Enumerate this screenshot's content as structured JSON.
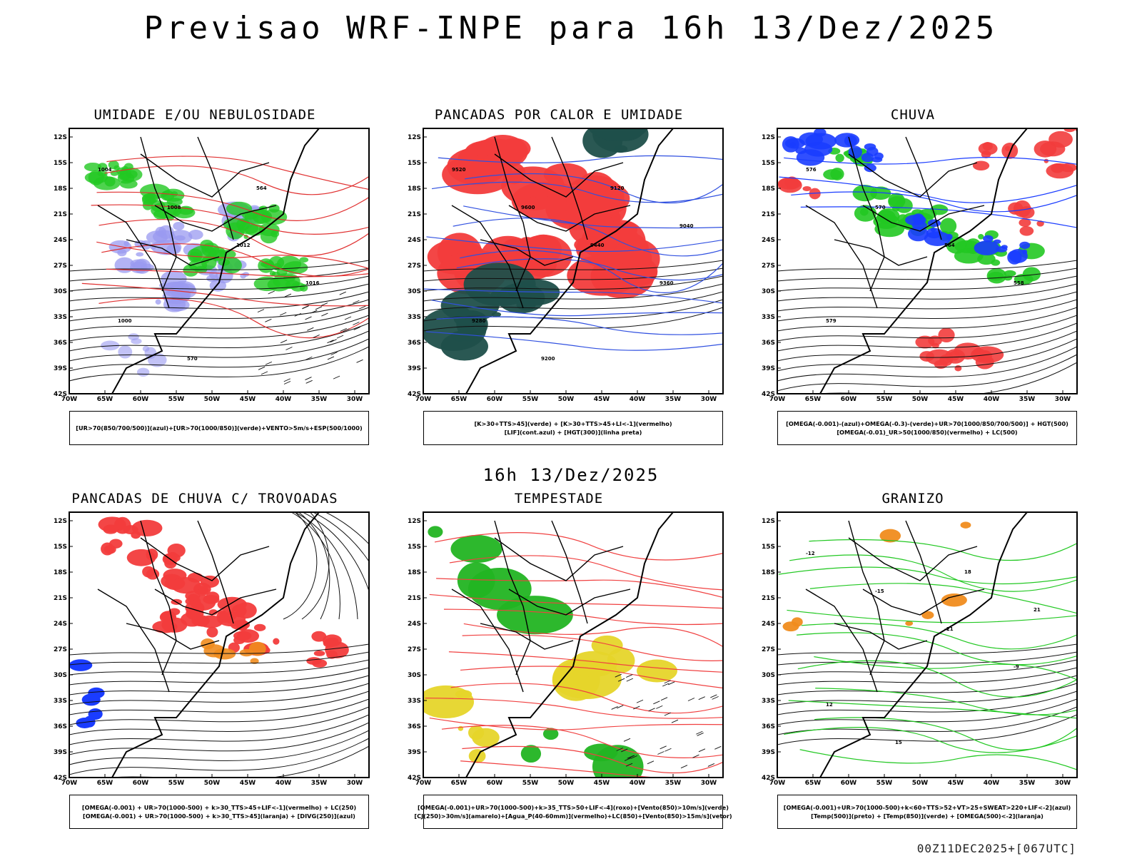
{
  "header": {
    "title": "Previsao WRF-INPE  para 16h 13/Dez/2025",
    "subtitle": "16h 13/Dez/2025",
    "footer": "00Z11DEC2025+[067UTC]"
  },
  "axes": {
    "lon_labels": [
      "70W",
      "65W",
      "60W",
      "55W",
      "50W",
      "45W",
      "40W",
      "35W",
      "30W"
    ],
    "lat_labels": [
      "12S",
      "15S",
      "18S",
      "21S",
      "24S",
      "27S",
      "30S",
      "33S",
      "36S",
      "39S",
      "42S"
    ]
  },
  "panels": [
    {
      "title": "UMIDADE E/OU NEBULOSIDADE",
      "legend": [
        "[UR>70(850/700/500)](azul)+[UR>70(1000/850)](verde)+VENTO>5m/s+ESP(500/1000)"
      ],
      "contour_labels": [
        "1004",
        "1008",
        "1012",
        "1016",
        "1000",
        "570",
        "564"
      ],
      "colors": {
        "fill1": "#9a9af0",
        "fill2": "#22c822",
        "line": "#e03030"
      }
    },
    {
      "title": "PANCADAS POR CALOR E UMIDADE",
      "legend": [
        "[K>30+TTS>45](verde) + [K>30+TTS>45+LI<-1](vermelho)",
        "[LIF](cont.azul) + [HGT(300)](linha preta)"
      ],
      "contour_labels": [
        "9520",
        "9600",
        "9440",
        "9360",
        "9280",
        "9200",
        "9120",
        "9040"
      ],
      "colors": {
        "fill1": "#f23c3c",
        "fill2": "#1f4f4a",
        "line": "#3050e0"
      }
    },
    {
      "title": "CHUVA",
      "legend": [
        "[OMEGA(-0.001)-(azul)+OMEGA(-0.3)-(verde)+UR>70(1000/850/700/500)] + HGT(500)",
        "[OMEGA(-0.01)_UR>50(1000/850)(vermelho) + LC(500)"
      ],
      "contour_labels": [
        "576",
        "570",
        "564",
        "558",
        "579"
      ],
      "colors": {
        "fill1": "#f23c3c",
        "fill2": "#22c822",
        "line": "#1a3cff"
      }
    },
    {
      "title": "PANCADAS DE CHUVA C/ TROVOADAS",
      "legend": [
        "[OMEGA(-0.001) + UR>70(1000-500) + k>30_TTS>45+LIF<-1](vermelho) + LC(250)",
        "[OMEGA(-0.001) + UR>70(1000-500) + k>30_TTS>45](laranja) + [DIVG(250)](azul)"
      ],
      "contour_labels": [],
      "colors": {
        "fill1": "#f23c3c",
        "fill2": "#f08c1e",
        "line": "#1a3cff"
      }
    },
    {
      "title": "TEMPESTADE",
      "legend": [
        "[OMEGA(-0.001)+UR>70(1000-500)+k>35_TTS>50+LIF<-4](roxo)+[Vento(850)>10m/s](verde)",
        "[CJ(250)>30m/s](amarelo)+[Agua_P(40-60mm)](vermelho)+LC(850)+[Vento(850)>15m/s](vetor)"
      ],
      "contour_labels": [],
      "colors": {
        "fill1": "#e6d52a",
        "fill2": "#22b422",
        "line": "#f04040"
      }
    },
    {
      "title": "GRANIZO",
      "legend": [
        "[OMEGA(-0.001)+UR>70(1000-500)+k<60+TTS>52+VT>25+SWEAT>220+LIF<-2](azul)",
        "[Temp(500)](preto) + [Temp(850)](verde) + [OMEGA(500)<-2](laranja)"
      ],
      "contour_labels": [
        "-12",
        "-15",
        "-21",
        "-9",
        "12",
        "15",
        "18",
        "21"
      ],
      "colors": {
        "fill1": "#f08c1e",
        "fill2": "#22c822",
        "line": "#22c822"
      }
    }
  ]
}
